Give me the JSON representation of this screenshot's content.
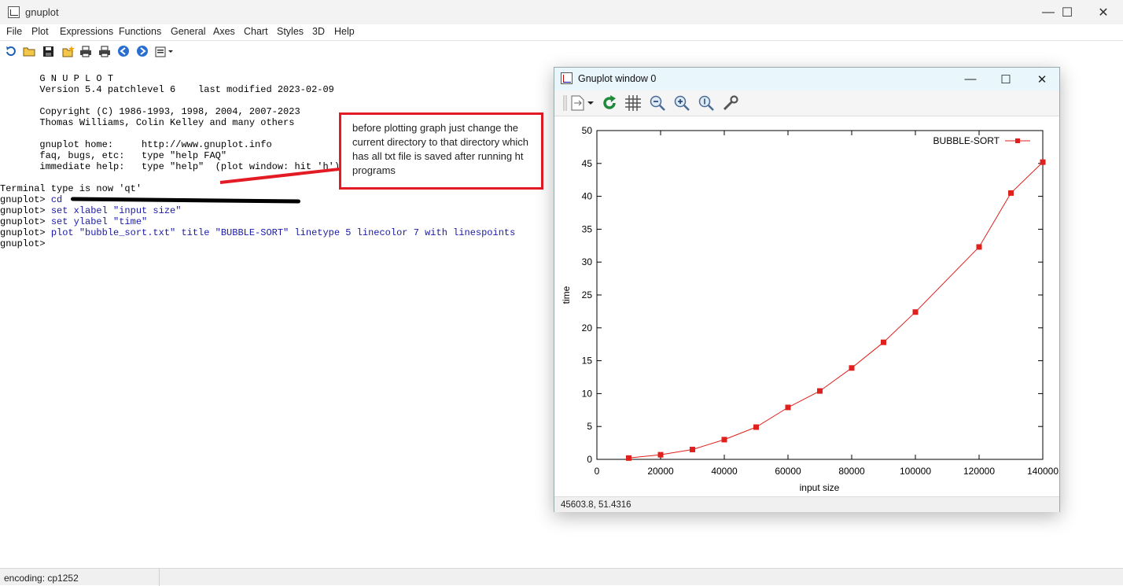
{
  "app": {
    "title": "gnuplot",
    "menu": [
      "File",
      "Plot",
      "Expressions",
      "Functions",
      "General",
      "Axes",
      "Chart",
      "Styles",
      "3D",
      "Help"
    ],
    "window_controls": {
      "minimize": "—",
      "maximize": "☐",
      "close": "✕"
    }
  },
  "toolbar": {
    "icons": [
      "refresh-icon",
      "open-folder-icon",
      "save-icon",
      "new-file-icon",
      "print-icon",
      "print-setup-icon",
      "back-icon",
      "forward-icon",
      "options-icon"
    ]
  },
  "console": {
    "banner": [
      "       G N U P L O T",
      "       Version 5.4 patchlevel 6    last modified 2023-02-09",
      "",
      "       Copyright (C) 1986-1993, 1998, 2004, 2007-2023",
      "       Thomas Williams, Colin Kelley and many others",
      "",
      "       gnuplot home:     http://www.gnuplot.info",
      "       faq, bugs, etc:   type \"help FAQ\"",
      "       immediate help:   type \"help\"  (plot window: hit 'h')"
    ],
    "terminal_line": "Terminal type is now 'qt'",
    "prompt": "gnuplot> ",
    "commands": [
      "cd",
      "set xlabel \"input size\"",
      "set ylabel \"time\"",
      "plot \"bubble_sort.txt\" title \"BUBBLE-SORT\" linetype 5 linecolor 7 with linespoints",
      ""
    ]
  },
  "annotation": {
    "text": "before plotting graph just change the current directory to that directory which has all txt file is saved after running ht programs",
    "color": "#e21b24"
  },
  "statusbar": {
    "encoding": "encoding: cp1252"
  },
  "plot_window": {
    "title": "Gnuplot window 0",
    "status": "45603.8,  51.4316",
    "tools": [
      "export-icon",
      "replot-icon",
      "grid-icon",
      "zoom-out-icon",
      "zoom-in-icon",
      "zoom-reset-icon",
      "settings-wrench-icon"
    ]
  },
  "chart_data": {
    "type": "line",
    "title": "",
    "xlabel": "input size",
    "ylabel": "time",
    "xlim": [
      0,
      140000
    ],
    "ylim": [
      0,
      50
    ],
    "xticks": [
      "0",
      "20000",
      "40000",
      "60000",
      "80000",
      "100000",
      "120000",
      "140000"
    ],
    "yticks": [
      "0",
      "5",
      "10",
      "15",
      "20",
      "25",
      "30",
      "35",
      "40",
      "45",
      "50"
    ],
    "grid": false,
    "legend": "top-right",
    "series": [
      {
        "name": "BUBBLE-SORT",
        "color": "#e0201c",
        "marker": "square",
        "x": [
          10000,
          20000,
          30000,
          40000,
          50000,
          60000,
          70000,
          80000,
          90000,
          100000,
          120000,
          130000,
          140000
        ],
        "y": [
          0.2,
          0.7,
          1.5,
          3.0,
          4.9,
          7.9,
          10.4,
          13.9,
          17.8,
          22.4,
          32.3,
          40.5,
          45.2
        ]
      }
    ]
  }
}
